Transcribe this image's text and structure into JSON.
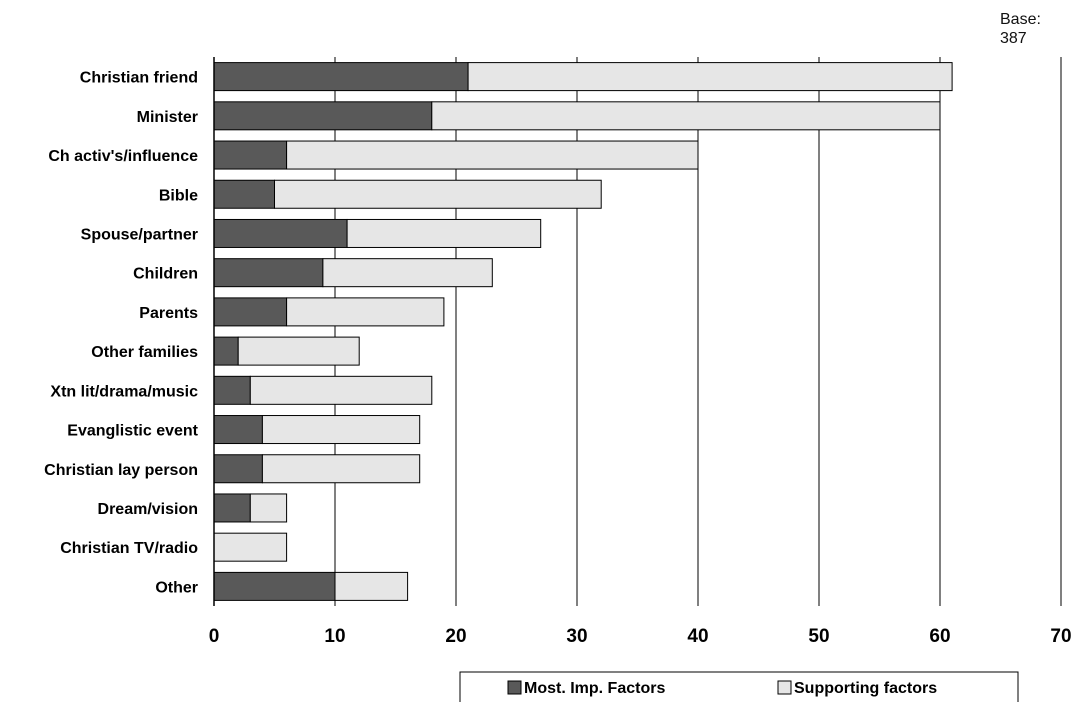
{
  "base_note": {
    "label": "Base:",
    "value": "387"
  },
  "colors": {
    "most_important": "#595959",
    "supporting": "#e6e6e6",
    "outline": "#000000",
    "grid": "#000000"
  },
  "chart_data": {
    "type": "bar",
    "orientation": "horizontal",
    "stacked": true,
    "categories": [
      "Christian friend",
      "Minister",
      "Ch activ's/influence",
      "Bible",
      "Spouse/partner",
      "Children",
      "Parents",
      "Other families",
      "Xtn lit/drama/music",
      "Evanglistic event",
      "Christian lay person",
      "Dream/vision",
      "Christian TV/radio",
      "Other"
    ],
    "series": [
      {
        "name": "Most. Imp. Factors",
        "values": [
          21,
          18,
          6,
          5,
          11,
          9,
          6,
          2,
          3,
          4,
          4,
          3,
          0,
          10
        ]
      },
      {
        "name": "Supporting factors",
        "values": [
          40,
          42,
          34,
          27,
          16,
          14,
          13,
          10,
          15,
          13,
          13,
          3,
          6,
          6
        ]
      }
    ],
    "xlim": [
      0,
      70
    ],
    "xticks": [
      0,
      10,
      20,
      30,
      40,
      50,
      60,
      70
    ],
    "xlabel": "",
    "ylabel": "",
    "grid": true,
    "legend_position": "bottom"
  }
}
